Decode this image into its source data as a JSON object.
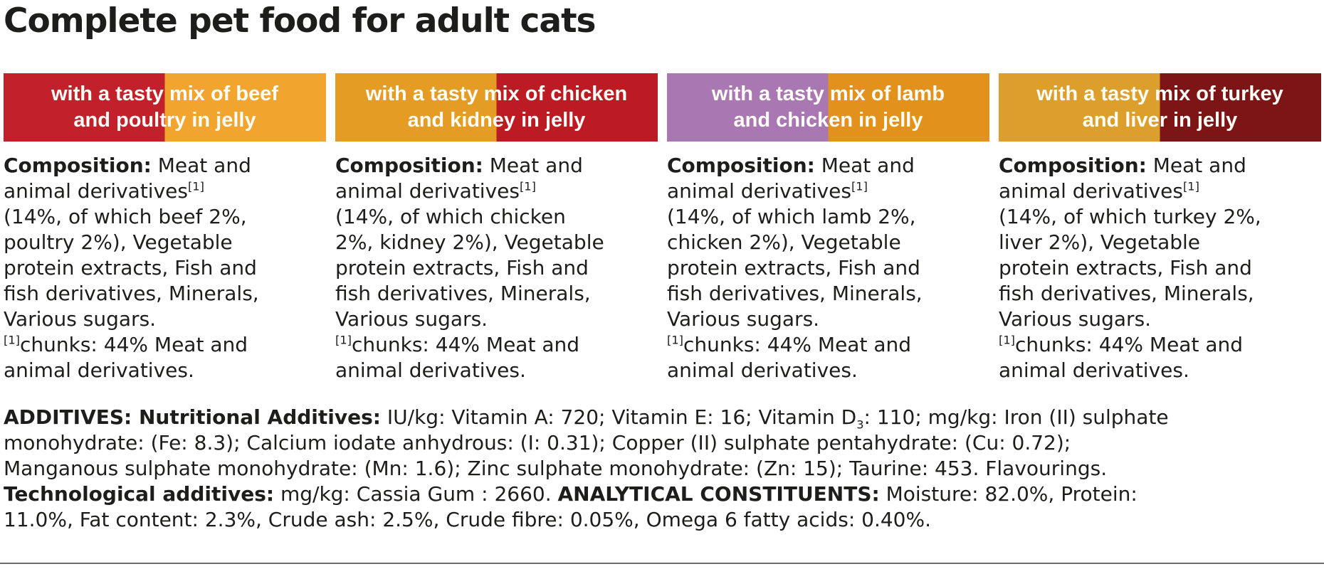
{
  "title": "Complete pet food for adult cats",
  "colors": {
    "text": "#1d1d1b",
    "banner_text": "#fffdf7",
    "bottom_edge": "#6b6b6b"
  },
  "products": [
    {
      "name": "beef-and-poultry",
      "banner": {
        "text": "with a tasty mix of beef\nand poultry in jelly",
        "left_color": "#c2202b",
        "right_color": "#f2a52e"
      },
      "composition": {
        "label": "Composition:",
        "intro": " Meat and\nanimal derivatives",
        "sup": "[1]",
        "body": "\n(14%, of which beef 2%,\npoultry 2%), Vegetable\nprotein extracts, Fish and\nfish derivatives, Minerals,\nVarious sugars.\n",
        "footnote_sup": "[1]",
        "footnote": "chunks: 44% Meat and\nanimal derivatives."
      }
    },
    {
      "name": "chicken-and-kidney",
      "banner": {
        "text": "with a tasty mix of chicken\nand kidney in jelly",
        "left_color": "#e49c25",
        "right_color": "#bd1b23"
      },
      "composition": {
        "label": "Composition:",
        "intro": " Meat and\nanimal derivatives",
        "sup": "[1]",
        "body": "\n(14%, of which chicken\n2%, kidney 2%), Vegetable\nprotein extracts, Fish and\nfish derivatives, Minerals,\nVarious sugars.\n",
        "footnote_sup": "[1]",
        "footnote": "chunks: 44% Meat and\nanimal derivatives."
      }
    },
    {
      "name": "lamb-and-chicken",
      "banner": {
        "text": "with a tasty mix of lamb\nand chicken in jelly",
        "left_color": "#a978b3",
        "right_color": "#e2921c"
      },
      "composition": {
        "label": "Composition:",
        "intro": " Meat and\nanimal derivatives",
        "sup": "[1]",
        "body": "\n(14%, of which lamb 2%,\nchicken 2%), Vegetable\nprotein extracts, Fish and\nfish derivatives, Minerals,\nVarious sugars.\n",
        "footnote_sup": "[1]",
        "footnote": "chunks: 44% Meat and\nanimal derivatives."
      }
    },
    {
      "name": "turkey-and-liver",
      "banner": {
        "text": "with a tasty mix of turkey\nand liver in jelly",
        "left_color": "#dd9f2b",
        "right_color": "#7d1517"
      },
      "composition": {
        "label": "Composition:",
        "intro": " Meat and\nanimal derivatives",
        "sup": "[1]",
        "body": "\n(14%, of which turkey 2%,\nliver 2%), Vegetable\nprotein extracts, Fish and\nfish derivatives, Minerals,\nVarious sugars.\n",
        "footnote_sup": "[1]",
        "footnote": "chunks: 44% Meat and\nanimal derivatives."
      }
    }
  ],
  "additives": {
    "bold1": "ADDITIVES: Nutritional Additives:",
    "seg1": " IU/kg: Vitamin A: 720; Vitamin E: 16; Vitamin D",
    "sub": "3",
    "seg2": ": 110; mg/kg: Iron (II) sulphate\nmonohydrate: (Fe: 8.3); Calcium iodate anhydrous: (I: 0.31); Copper (II) sulphate pentahydrate: (Cu: 0.72);\nManganous sulphate monohydrate: (Mn: 1.6); Zinc sulphate monohydrate: (Zn: 15); Taurine: 453. Flavourings.\n",
    "bold2": "Technological additives:",
    "seg3": " mg/kg: Cassia Gum : 2660. ",
    "bold3": "ANALYTICAL CONSTITUENTS:",
    "seg4": " Moisture: 82.0%, Protein:\n11.0%, Fat content: 2.3%, Crude ash: 2.5%, Crude fibre: 0.05%, Omega 6 fatty acids: 0.40%."
  }
}
